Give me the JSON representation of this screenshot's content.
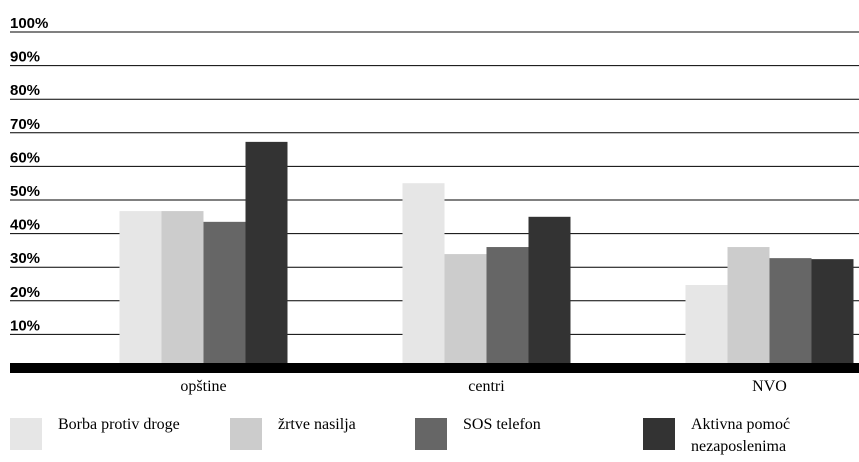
{
  "chart_data": {
    "type": "bar",
    "categories": [
      "opštine",
      "centri",
      "NVO"
    ],
    "series": [
      {
        "name": "Borba protiv droge",
        "color": "#e6e6e6",
        "values": [
          46.7,
          55,
          24.7
        ]
      },
      {
        "name": "žrtve nasilja",
        "color": "#cccccc",
        "values": [
          46.7,
          33.9,
          36
        ]
      },
      {
        "name": "SOS telefon",
        "color": "#666666",
        "values": [
          43.5,
          36,
          32.7
        ]
      },
      {
        "name": "Aktivna pomoć nezaposlenima",
        "color": "#333333",
        "values": [
          67.3,
          45,
          32.4
        ]
      }
    ],
    "ylim": [
      0,
      100
    ],
    "yticks": [
      {
        "value": 10,
        "label": "10%"
      },
      {
        "value": 20,
        "label": "20%"
      },
      {
        "value": 30,
        "label": "30%"
      },
      {
        "value": 40,
        "label": "40%"
      },
      {
        "value": 50,
        "label": "50%"
      },
      {
        "value": 60,
        "label": "60%"
      },
      {
        "value": 70,
        "label": "70%"
      },
      {
        "value": 80,
        "label": "80%"
      },
      {
        "value": 90,
        "label": "90%"
      },
      {
        "value": 100,
        "label": "100%"
      }
    ],
    "grid": true,
    "legend": "bottom"
  }
}
